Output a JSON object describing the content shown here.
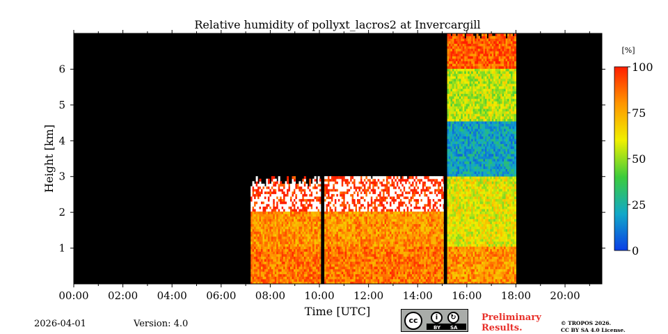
{
  "chart_data": {
    "type": "heatmap",
    "title": "Relative humidity of pollyxt_lacros2 at Invercargill",
    "xlabel": "Time [UTC]",
    "ylabel": "Height [km]",
    "xlim": [
      0,
      21.5
    ],
    "ylim": [
      0,
      7.0
    ],
    "x_ticks": [
      {
        "value": 0,
        "label": "00:00"
      },
      {
        "value": 2,
        "label": "02:00"
      },
      {
        "value": 4,
        "label": "04:00"
      },
      {
        "value": 6,
        "label": "06:00"
      },
      {
        "value": 8,
        "label": "08:00"
      },
      {
        "value": 10,
        "label": "10:00"
      },
      {
        "value": 12,
        "label": "12:00"
      },
      {
        "value": 14,
        "label": "14:00"
      },
      {
        "value": 16,
        "label": "16:00"
      },
      {
        "value": 18,
        "label": "18:00"
      },
      {
        "value": 20,
        "label": "20:00"
      }
    ],
    "y_ticks": [
      {
        "value": 1,
        "label": "1"
      },
      {
        "value": 2,
        "label": "2"
      },
      {
        "value": 3,
        "label": "3"
      },
      {
        "value": 4,
        "label": "4"
      },
      {
        "value": 5,
        "label": "5"
      },
      {
        "value": 6,
        "label": "6"
      }
    ],
    "colorbar": {
      "unit": "[%]",
      "range": [
        0,
        100
      ],
      "ticks": [
        {
          "value": 0,
          "label": "0"
        },
        {
          "value": 25,
          "label": "25"
        },
        {
          "value": 50,
          "label": "50"
        },
        {
          "value": 75,
          "label": "75"
        },
        {
          "value": 100,
          "label": "100"
        }
      ],
      "colormap": [
        "#0a3ee6",
        "#12a8c8",
        "#3ccc3c",
        "#f0f000",
        "#ff9600",
        "#ff1e00"
      ]
    },
    "no_data_color": "#000000",
    "data_gaps_hours": [
      [
        0,
        7.2
      ],
      [
        10.05,
        10.2
      ],
      [
        15.05,
        15.2
      ],
      [
        18.0,
        21.5
      ]
    ],
    "profiles": [
      {
        "time_range": [
          7.2,
          10.05
        ],
        "rh_by_height": [
          {
            "height_range": [
              0,
              1.0
            ],
            "rh": 85
          },
          {
            "height_range": [
              1.0,
              2.0
            ],
            "rh": 80
          },
          {
            "height_range": [
              2.0,
              3.0
            ],
            "rh": 98
          }
        ],
        "signal_top_km": 2.9
      },
      {
        "time_range": [
          10.2,
          15.05
        ],
        "rh_by_height": [
          {
            "height_range": [
              0,
              1.0
            ],
            "rh": 85
          },
          {
            "height_range": [
              1.0,
              2.0
            ],
            "rh": 80
          },
          {
            "height_range": [
              2.0,
              3.0
            ],
            "rh": 98
          }
        ],
        "signal_top_km": 3.1
      },
      {
        "time_range": [
          15.2,
          18.0
        ],
        "rh_by_height": [
          {
            "height_range": [
              0,
              1.0
            ],
            "rh": 80
          },
          {
            "height_range": [
              1.0,
              3.0
            ],
            "rh": 60
          },
          {
            "height_range": [
              3.0,
              4.5
            ],
            "rh": 20
          },
          {
            "height_range": [
              4.5,
              6.0
            ],
            "rh": 55
          },
          {
            "height_range": [
              6.0,
              7.0
            ],
            "rh": 90
          }
        ],
        "signal_top_km": 7.0
      }
    ]
  },
  "footer": {
    "date": "2026-04-01",
    "version": "Version: 4.0",
    "preliminary": [
      "Preliminary",
      "Results."
    ],
    "copyright": [
      "© TROPOS 2026.",
      "CC BY SA 4.0 License."
    ],
    "license_badge": {
      "cc": "cc",
      "by": "BY",
      "sa": "SA"
    }
  }
}
